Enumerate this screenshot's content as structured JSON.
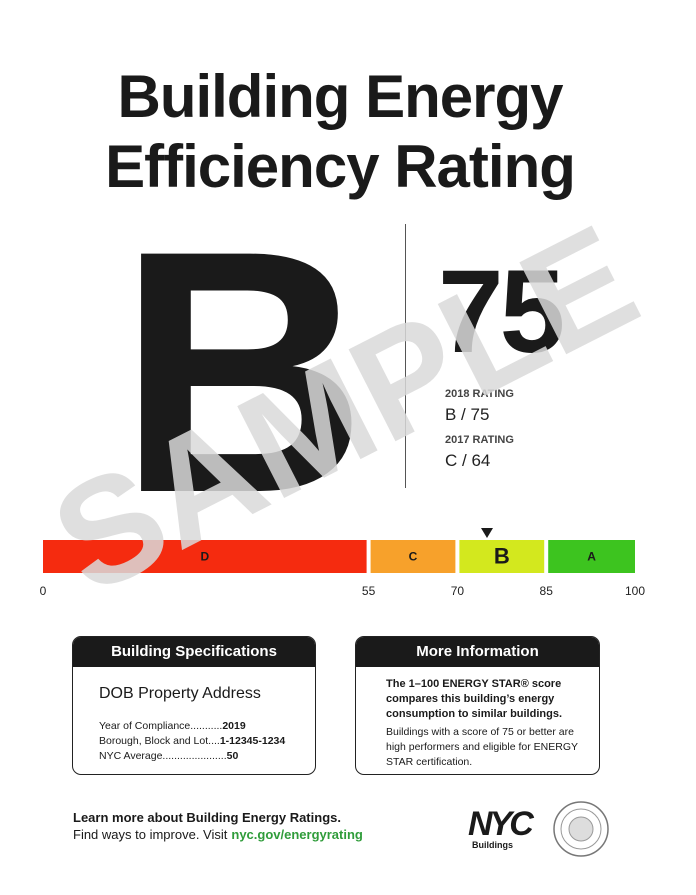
{
  "title": [
    "Building Energy",
    "Efficiency Rating"
  ],
  "grade": "B",
  "score": 75,
  "watermark": "SAMPLE",
  "history": [
    {
      "label": "2018 RATING",
      "value": "B / 75"
    },
    {
      "label": "2017 RATING",
      "value": "C / 64"
    }
  ],
  "scale": {
    "ticks": [
      0,
      55,
      70,
      85,
      100
    ],
    "segments": [
      {
        "label": "D",
        "color": "#f52b0f"
      },
      {
        "label": "C",
        "color": "#f7a12b"
      },
      {
        "label": "B",
        "color": "#d3e81e"
      },
      {
        "label": "A",
        "color": "#3dc41f"
      }
    ]
  },
  "specifications": {
    "title": "Building Specifications",
    "address": "DOB Property Address",
    "rows": [
      [
        "Year of Compliance...........",
        "2019"
      ],
      [
        "Borough, Block and Lot....",
        "1-12345-1234"
      ],
      [
        "NYC Average......................",
        "50"
      ]
    ]
  },
  "more_information": {
    "title": "More Information",
    "lead": "The 1–100 ENERGY STAR® score compares this building’s energy consumption to similar buildings.",
    "body": "Buildings with a score of 75 or better are high performers and eligible for ENERGY STAR certification."
  },
  "footer": {
    "line1": "Learn more about Building Energy Ratings.",
    "line2": "Find ways to improve. Visit",
    "link": "nyc.gov/energyrating",
    "logo": "NYC",
    "agency": "Buildings"
  }
}
